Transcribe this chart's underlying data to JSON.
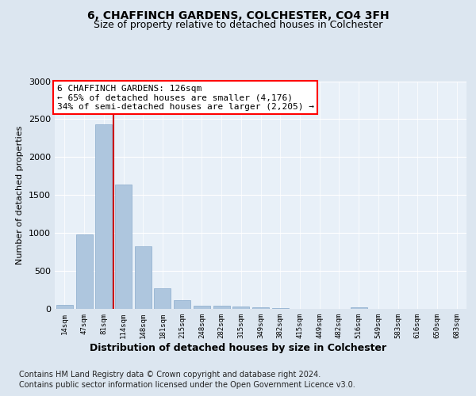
{
  "title": "6, CHAFFINCH GARDENS, COLCHESTER, CO4 3FH",
  "subtitle": "Size of property relative to detached houses in Colchester",
  "xlabel": "Distribution of detached houses by size in Colchester",
  "ylabel": "Number of detached properties",
  "categories": [
    "14sqm",
    "47sqm",
    "81sqm",
    "114sqm",
    "148sqm",
    "181sqm",
    "215sqm",
    "248sqm",
    "282sqm",
    "315sqm",
    "349sqm",
    "382sqm",
    "415sqm",
    "449sqm",
    "482sqm",
    "516sqm",
    "549sqm",
    "583sqm",
    "616sqm",
    "650sqm",
    "683sqm"
  ],
  "values": [
    50,
    980,
    2430,
    1640,
    820,
    270,
    110,
    45,
    40,
    30,
    20,
    10,
    5,
    0,
    0,
    20,
    0,
    0,
    0,
    0,
    0
  ],
  "bar_color": "#aec6de",
  "bar_edge_color": "#8aabcc",
  "vline_color": "#cc0000",
  "vline_pos": 2.5,
  "annotation_box_text": "6 CHAFFINCH GARDENS: 126sqm\n← 65% of detached houses are smaller (4,176)\n34% of semi-detached houses are larger (2,205) →",
  "ylim": [
    0,
    3000
  ],
  "yticks": [
    0,
    500,
    1000,
    1500,
    2000,
    2500,
    3000
  ],
  "bg_color": "#dce6f0",
  "plot_bg_color": "#e8f0f8",
  "footer_line1": "Contains HM Land Registry data © Crown copyright and database right 2024.",
  "footer_line2": "Contains public sector information licensed under the Open Government Licence v3.0.",
  "title_fontsize": 10,
  "subtitle_fontsize": 9,
  "ylabel_fontsize": 8,
  "annot_fontsize": 8,
  "xlabel_fontsize": 9,
  "footer_fontsize": 7
}
